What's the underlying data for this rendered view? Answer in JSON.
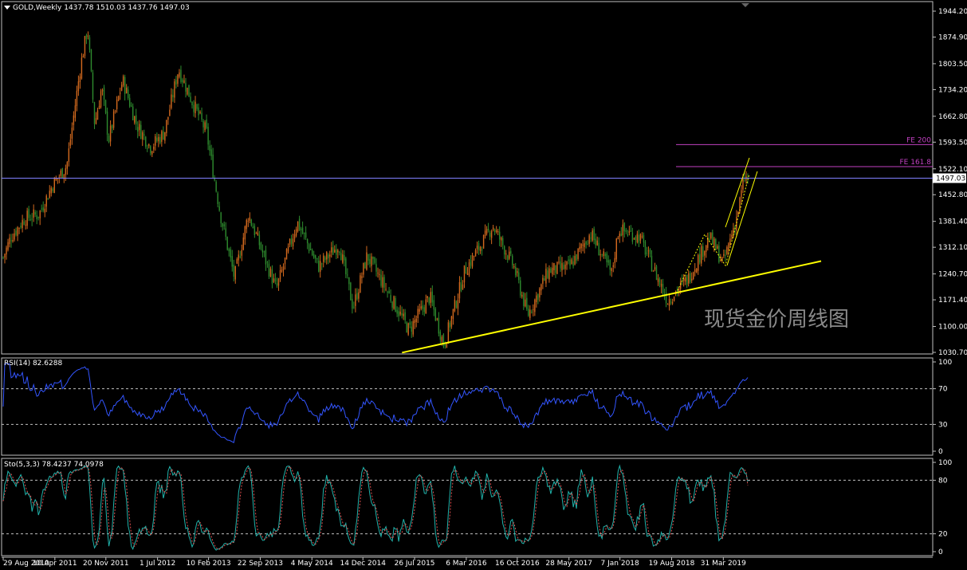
{
  "header": {
    "symbol": "GOLD,Weekly",
    "ohlc": "1437.78 1510.03 1437.76 1497.03"
  },
  "watermark": "现货金价周线图",
  "price_axis": {
    "ticks": [
      "1944.20",
      "1874.90",
      "1803.50",
      "1734.20",
      "1662.80",
      "1593.50",
      "1522.10",
      "1452.80",
      "1381.40",
      "1312.10",
      "1240.70",
      "1171.40",
      "1100.00",
      "1030.70"
    ],
    "ticks_values": [
      1944.2,
      1874.9,
      1803.5,
      1734.2,
      1662.8,
      1593.5,
      1522.1,
      1452.8,
      1381.4,
      1312.1,
      1240.7,
      1171.4,
      1100.0,
      1030.7
    ],
    "current_price": "1497.03",
    "current_price_value": 1497.03
  },
  "fe_lines": [
    {
      "label": "FE 200",
      "price": 1587
    },
    {
      "label": "FE 161.8",
      "price": 1528
    }
  ],
  "date_axis": [
    "29 Aug 2010",
    "10 Apr 2011",
    "20 Nov 2011",
    "1 Jul 2012",
    "10 Feb 2013",
    "22 Sep 2013",
    "4 May 2014",
    "14 Dec 2014",
    "26 Jul 2015",
    "6 Mar 2016",
    "16 Oct 2016",
    "28 May 2017",
    "7 Jan 2018",
    "19 Aug 2018",
    "31 Mar 2019"
  ],
  "rsi": {
    "label": "RSI(14) 82.6288",
    "ticks": [
      "100",
      "70",
      "30",
      "0"
    ],
    "levels": [
      70,
      30
    ]
  },
  "sto": {
    "label": "Sto(5,3,3) 78.4237 74.0978",
    "ticks": [
      "100",
      "80",
      "20",
      "0"
    ],
    "levels": [
      80,
      20
    ]
  },
  "colors": {
    "bull": "#d2691e",
    "bear": "#2e8b2e",
    "trendline": "#ffff00",
    "fe": "#c040c0",
    "rsi": "#3355ff",
    "sto_main": "#20b2aa",
    "sto_signal": "#e05050",
    "price_line": "#8080ff",
    "grid": "#c0c0c0"
  },
  "chart_data": {
    "type": "candlestick",
    "symbol": "GOLD",
    "timeframe": "Weekly",
    "ylim": [
      1030.7,
      1944.2
    ],
    "x_tick_labels": [
      "29 Aug 2010",
      "10 Apr 2011",
      "20 Nov 2011",
      "1 Jul 2012",
      "10 Feb 2013",
      "22 Sep 2013",
      "4 May 2014",
      "14 Dec 2014",
      "26 Jul 2015",
      "6 Mar 2016",
      "16 Oct 2016",
      "28 May 2017",
      "7 Jan 2018",
      "19 Aug 2018",
      "31 Mar 2019"
    ],
    "approx_close_path": [
      {
        "date": "2010-08",
        "price": 1240
      },
      {
        "date": "2010-10",
        "price": 1340
      },
      {
        "date": "2010-12",
        "price": 1390
      },
      {
        "date": "2011-02",
        "price": 1400
      },
      {
        "date": "2011-04",
        "price": 1480
      },
      {
        "date": "2011-06",
        "price": 1530
      },
      {
        "date": "2011-08",
        "price": 1800
      },
      {
        "date": "2011-09",
        "price": 1900
      },
      {
        "date": "2011-10",
        "price": 1640
      },
      {
        "date": "2011-11",
        "price": 1740
      },
      {
        "date": "2011-12",
        "price": 1600
      },
      {
        "date": "2012-02",
        "price": 1760
      },
      {
        "date": "2012-04",
        "price": 1640
      },
      {
        "date": "2012-06",
        "price": 1580
      },
      {
        "date": "2012-08",
        "price": 1620
      },
      {
        "date": "2012-10",
        "price": 1790
      },
      {
        "date": "2012-12",
        "price": 1700
      },
      {
        "date": "2013-02",
        "price": 1620
      },
      {
        "date": "2013-04",
        "price": 1400
      },
      {
        "date": "2013-06",
        "price": 1230
      },
      {
        "date": "2013-08",
        "price": 1400
      },
      {
        "date": "2013-12",
        "price": 1200
      },
      {
        "date": "2014-03",
        "price": 1380
      },
      {
        "date": "2014-06",
        "price": 1260
      },
      {
        "date": "2014-09",
        "price": 1320
      },
      {
        "date": "2014-11",
        "price": 1150
      },
      {
        "date": "2015-01",
        "price": 1290
      },
      {
        "date": "2015-04",
        "price": 1190
      },
      {
        "date": "2015-07",
        "price": 1090
      },
      {
        "date": "2015-10",
        "price": 1180
      },
      {
        "date": "2015-12",
        "price": 1050
      },
      {
        "date": "2016-03",
        "price": 1250
      },
      {
        "date": "2016-07",
        "price": 1370
      },
      {
        "date": "2016-10",
        "price": 1260
      },
      {
        "date": "2016-12",
        "price": 1130
      },
      {
        "date": "2017-03",
        "price": 1250
      },
      {
        "date": "2017-06",
        "price": 1260
      },
      {
        "date": "2017-09",
        "price": 1350
      },
      {
        "date": "2017-12",
        "price": 1240
      },
      {
        "date": "2018-01",
        "price": 1360
      },
      {
        "date": "2018-04",
        "price": 1340
      },
      {
        "date": "2018-08",
        "price": 1170
      },
      {
        "date": "2018-11",
        "price": 1230
      },
      {
        "date": "2019-02",
        "price": 1340
      },
      {
        "date": "2019-04",
        "price": 1270
      },
      {
        "date": "2019-06",
        "price": 1400
      },
      {
        "date": "2019-07",
        "price": 1497
      }
    ],
    "current_price": 1497.03,
    "trendline": [
      {
        "date": "2015-06",
        "price": 1030
      },
      {
        "date": "2019-12",
        "price": 1275
      }
    ],
    "fib_extensions": [
      {
        "label": "FE 200",
        "price": 1587
      },
      {
        "label": "FE 161.8",
        "price": 1528
      }
    ],
    "indicators": [
      {
        "name": "RSI(14)",
        "value": 82.6288,
        "levels": [
          70,
          30
        ],
        "ylim": [
          0,
          100
        ]
      },
      {
        "name": "Sto(5,3,3)",
        "values": [
          78.4237,
          74.0978
        ],
        "levels": [
          80,
          20
        ],
        "ylim": [
          0,
          100
        ]
      }
    ]
  }
}
